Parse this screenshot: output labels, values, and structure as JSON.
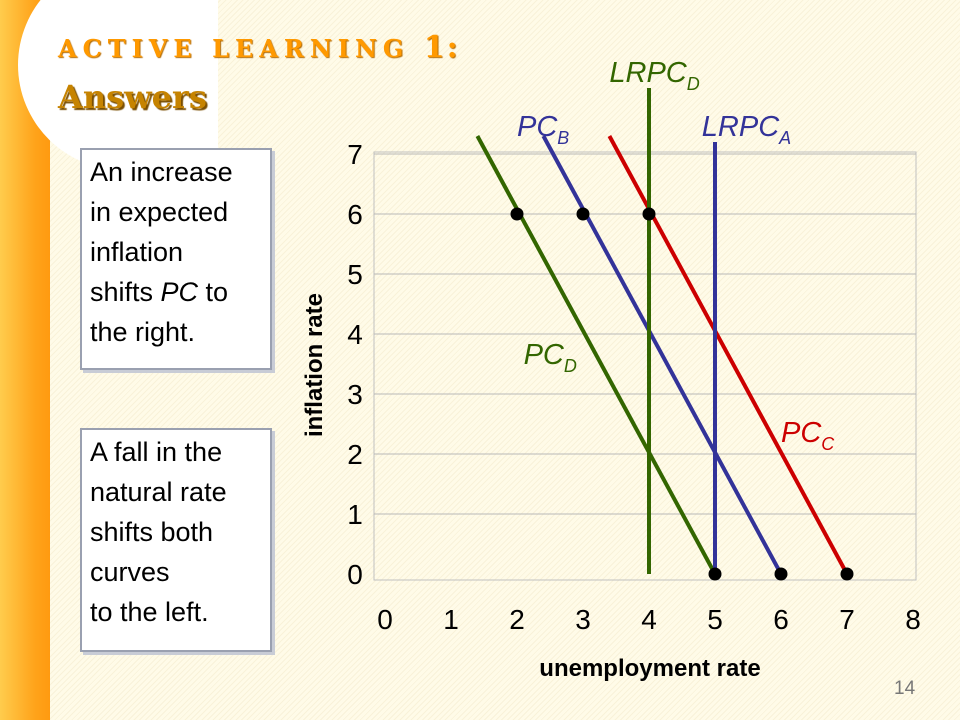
{
  "slide": {
    "title_line1": "ACTIVE LEARNING",
    "title_number": "1:",
    "title_line2": "Answers",
    "note1": [
      "An increase",
      "in expected",
      "inflation",
      "shifts PC to",
      "the right."
    ],
    "note1_italic_word": "PC",
    "note2": [
      "A fall in the",
      "natural rate",
      "shifts both",
      "curves",
      "to the left."
    ],
    "page_number": "14"
  },
  "chart_data": {
    "type": "line",
    "xlabel": "unemployment rate",
    "ylabel": "inflation rate",
    "xlim": [
      0,
      8
    ],
    "ylim": [
      0,
      7
    ],
    "x_ticks": [
      "0",
      "1",
      "2",
      "3",
      "4",
      "5",
      "6",
      "7",
      "8"
    ],
    "y_ticks": [
      "0",
      "1",
      "2",
      "3",
      "4",
      "5",
      "6",
      "7"
    ],
    "grid": "horizontal",
    "series": [
      {
        "name": "PC",
        "sub": "B",
        "color": "#333399",
        "x": [
          2.4,
          6.0
        ],
        "y": [
          7.3,
          0
        ]
      },
      {
        "name": "PC",
        "sub": "C",
        "color": "#cc0000",
        "x": [
          3.4,
          7.0
        ],
        "y": [
          7.3,
          0
        ]
      },
      {
        "name": "PC",
        "sub": "D",
        "color": "#336600",
        "x": [
          1.4,
          5.0
        ],
        "y": [
          7.3,
          0
        ]
      },
      {
        "name": "LRPC",
        "sub": "A",
        "color": "#333399",
        "x": [
          5,
          5
        ],
        "y": [
          0,
          7.2
        ]
      },
      {
        "name": "LRPC",
        "sub": "D",
        "color": "#336600",
        "x": [
          4,
          4
        ],
        "y": [
          0,
          8.1
        ]
      }
    ],
    "points": [
      {
        "x": 2,
        "y": 6
      },
      {
        "x": 3,
        "y": 6
      },
      {
        "x": 4,
        "y": 6
      },
      {
        "x": 5,
        "y": 0
      },
      {
        "x": 6,
        "y": 0
      },
      {
        "x": 7,
        "y": 0
      }
    ],
    "labels": [
      {
        "name": "LRPC",
        "sub": "D",
        "color": "#336600",
        "at": [
          3.4,
          8.2
        ]
      },
      {
        "name": "PC",
        "sub": "B",
        "color": "#333399",
        "at": [
          2.0,
          7.3
        ]
      },
      {
        "name": "LRPC",
        "sub": "A",
        "color": "#333399",
        "at": [
          4.8,
          7.3
        ]
      },
      {
        "name": "PC",
        "sub": "D",
        "color": "#336600",
        "at": [
          2.1,
          3.5
        ]
      },
      {
        "name": "PC",
        "sub": "C",
        "color": "#cc0000",
        "at": [
          6.0,
          2.2
        ]
      }
    ]
  }
}
